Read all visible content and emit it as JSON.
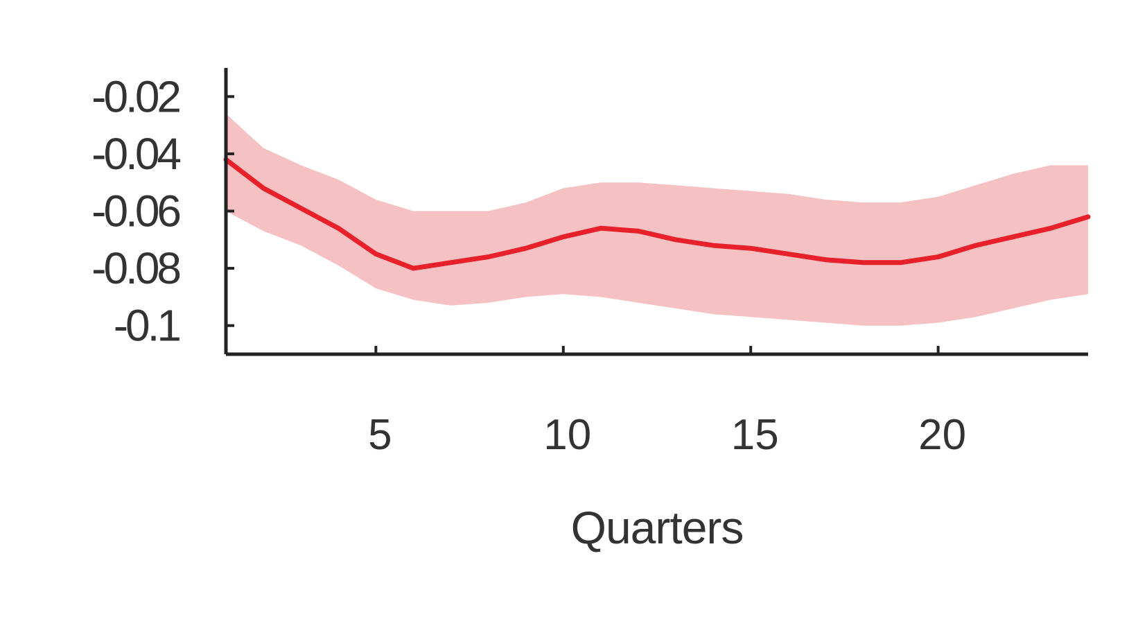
{
  "chart_data": {
    "type": "line",
    "title": "",
    "xlabel": "Quarters",
    "ylabel": "",
    "xlim": [
      1,
      24
    ],
    "ylim": [
      -0.11,
      -0.01
    ],
    "grid": false,
    "xticks": [
      5,
      10,
      15,
      20
    ],
    "xtick_labels": [
      "5",
      "10",
      "15",
      "20"
    ],
    "yticks": [
      -0.02,
      -0.04,
      -0.06,
      -0.08,
      -0.1
    ],
    "ytick_labels": [
      "-0.02",
      "-0.04",
      "-0.06",
      "-0.08",
      "-0.1"
    ],
    "line_color": "#e8202a",
    "band_color": "#f4b6b8",
    "series": [
      {
        "x": [
          1,
          2,
          3,
          4,
          5,
          6,
          7,
          8,
          9,
          10,
          11,
          12,
          13,
          14,
          15,
          16,
          17,
          18,
          19,
          20,
          21,
          22,
          23,
          24
        ],
        "values": [
          -0.042,
          -0.052,
          -0.059,
          -0.066,
          -0.075,
          -0.08,
          -0.078,
          -0.076,
          -0.073,
          -0.069,
          -0.066,
          -0.067,
          -0.07,
          -0.072,
          -0.073,
          -0.075,
          -0.077,
          -0.078,
          -0.078,
          -0.076,
          -0.072,
          -0.069,
          -0.066,
          -0.062
        ],
        "lower": [
          -0.06,
          -0.067,
          -0.072,
          -0.079,
          -0.087,
          -0.091,
          -0.093,
          -0.092,
          -0.09,
          -0.089,
          -0.09,
          -0.092,
          -0.094,
          -0.096,
          -0.097,
          -0.098,
          -0.099,
          -0.1,
          -0.1,
          -0.099,
          -0.097,
          -0.094,
          -0.091,
          -0.089
        ],
        "upper": [
          -0.026,
          -0.038,
          -0.044,
          -0.049,
          -0.056,
          -0.06,
          -0.06,
          -0.06,
          -0.057,
          -0.052,
          -0.05,
          -0.05,
          -0.051,
          -0.052,
          -0.053,
          -0.054,
          -0.056,
          -0.057,
          -0.057,
          -0.055,
          -0.051,
          -0.047,
          -0.044,
          -0.044
        ]
      }
    ]
  }
}
